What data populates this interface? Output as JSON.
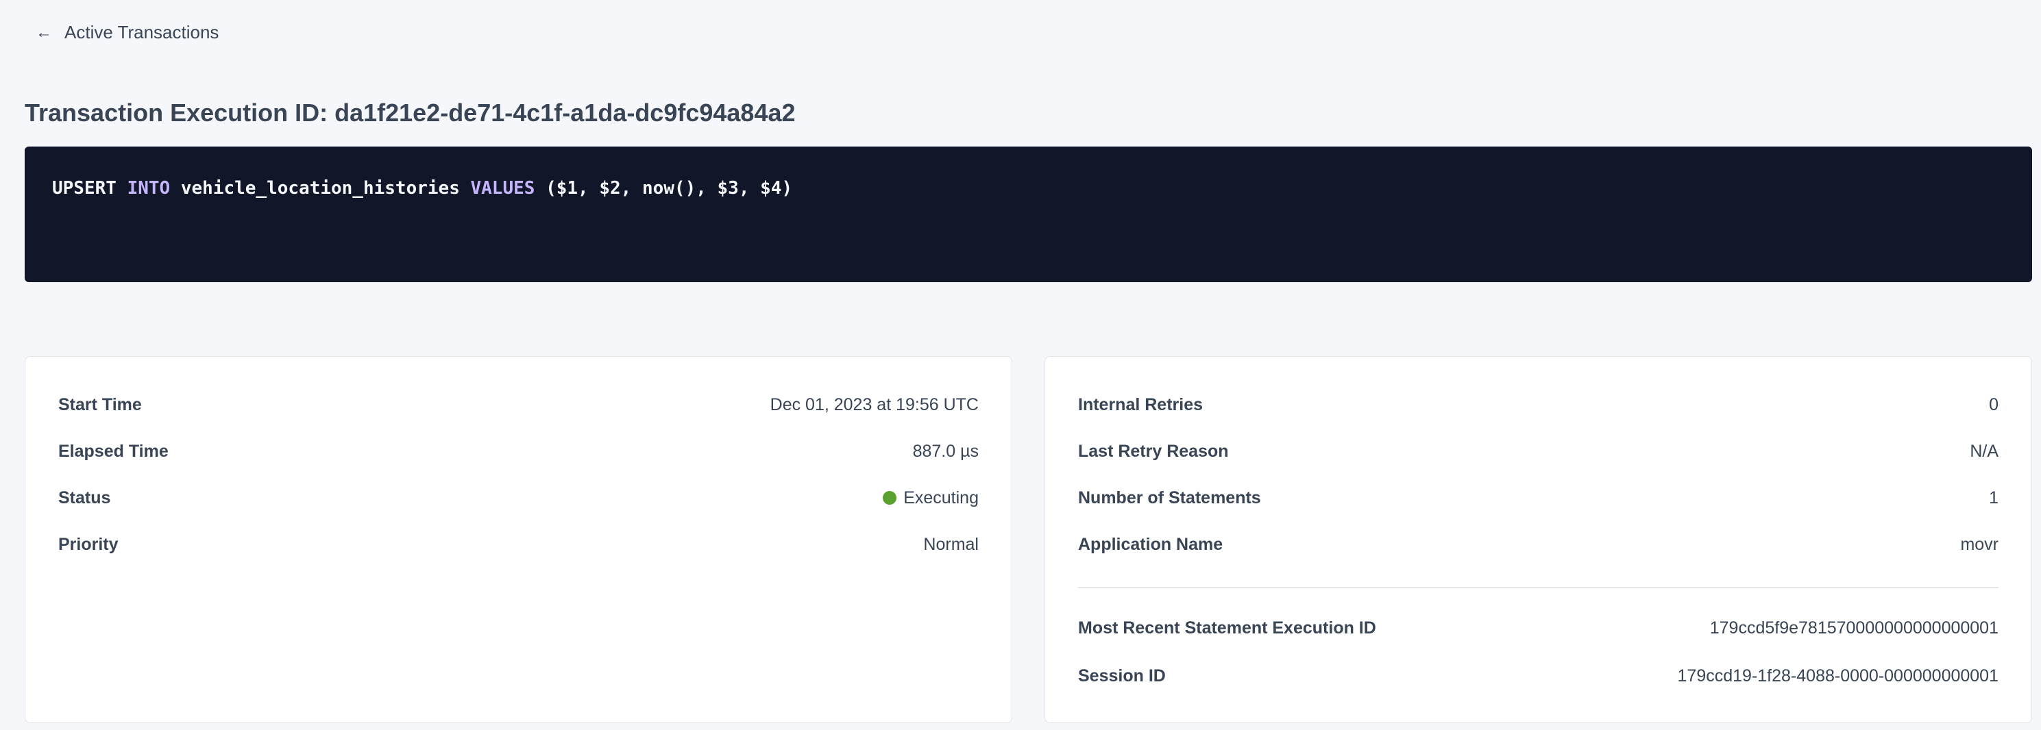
{
  "back_link": {
    "label": "Active Transactions",
    "icon": "arrow-left-icon"
  },
  "title": "Transaction Execution ID: da1f21e2-de71-4c1f-a1da-dc9fc94a84a2",
  "sql": {
    "parts": [
      "UPSERT ",
      "INTO",
      " vehicle_location_histories ",
      "VALUES",
      " ($1, $2, now(), $3, $4)"
    ]
  },
  "left_card": {
    "rows": [
      {
        "label": "Start Time",
        "value": "Dec 01, 2023 at 19:56 UTC"
      },
      {
        "label": "Elapsed Time",
        "value": "887.0 µs"
      },
      {
        "label": "Status",
        "value": "Executing",
        "status_color": "#5aa02c"
      },
      {
        "label": "Priority",
        "value": "Normal"
      }
    ]
  },
  "right_card": {
    "rows": [
      {
        "label": "Internal Retries",
        "value": "0"
      },
      {
        "label": "Last Retry Reason",
        "value": "N/A"
      },
      {
        "label": "Number of Statements",
        "value": "1"
      },
      {
        "label": "Application Name",
        "value": "movr"
      }
    ],
    "links": [
      {
        "label": "Most Recent Statement Execution ID",
        "value": "179ccd5f9e781570000000000000001"
      },
      {
        "label": "Session ID",
        "value": "179ccd19-1f28-4088-0000-000000000001"
      }
    ]
  },
  "colors": {
    "link": "#0055ff",
    "code_bg": "#111729",
    "keyword": "#c4b5fd"
  }
}
